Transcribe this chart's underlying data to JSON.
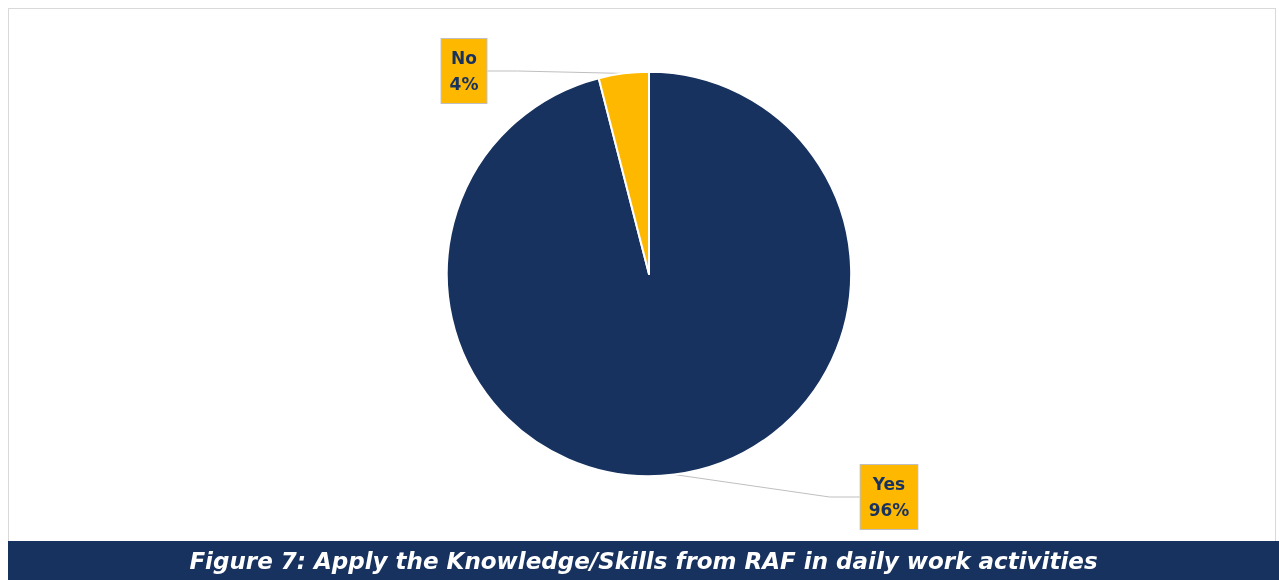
{
  "chart_data": {
    "type": "pie",
    "title": "Figure 7: Apply the Knowledge/Skills from RAF in daily work activities",
    "categories": [
      "Yes",
      "No"
    ],
    "values": [
      96,
      4
    ],
    "colors": [
      "#17325f",
      "#ffb800"
    ],
    "value_labels": [
      "96%",
      "4%"
    ],
    "legend": false
  }
}
